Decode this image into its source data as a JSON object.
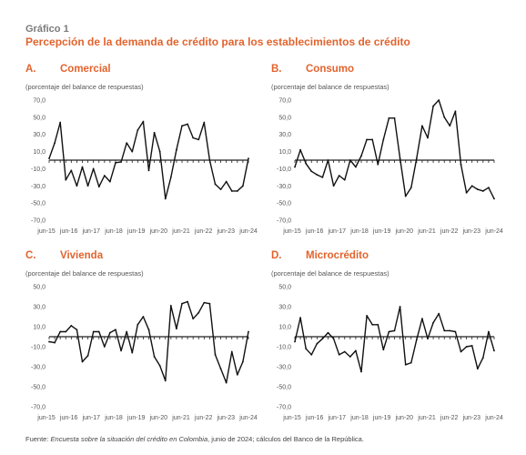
{
  "figure": {
    "number": "Gráfico 1",
    "title": "Percepción de la demanda de crédito para los establecimientos de crédito"
  },
  "source": {
    "lead": "Fuente: ",
    "survey": "Encuesta sobre la situación del crédito en Colombia",
    "rest": ", junio de 2024; cálculos del Banco de la República."
  },
  "colors": {
    "line": "#111111",
    "accent": "#e2632d",
    "zero_line": "#222222"
  },
  "chart_data": [
    {
      "type": "line",
      "panel_letter": "A.",
      "title": "Comercial",
      "subtitle": "(porcentaje del balance de respuestas)",
      "xlabels": [
        "jun-15",
        "jun-16",
        "jun-17",
        "jun-18",
        "jun-19",
        "jun-20",
        "jun-21",
        "jun-22",
        "jun-23",
        "jun-24"
      ],
      "yticks": [
        "70,0",
        "50,0",
        "30,0",
        "10,0",
        "-10,0",
        "-30,0",
        "-50,0",
        "-70,0"
      ],
      "ylim": [
        -70,
        70
      ],
      "values": [
        2,
        20,
        44,
        -23,
        -12,
        -30,
        -8,
        -30,
        -10,
        -31,
        -18,
        -25,
        -3,
        -2,
        20,
        10,
        35,
        45,
        -12,
        32,
        10,
        -45,
        -20,
        12,
        40,
        42,
        26,
        24,
        44,
        0,
        -28,
        -34,
        -25,
        -36,
        -36,
        -30,
        2
      ]
    },
    {
      "type": "line",
      "panel_letter": "B.",
      "title": "Consumo",
      "subtitle": "(porcentaje del balance de respuestas)",
      "xlabels": [
        "jun-15",
        "jun-16",
        "jun-17",
        "jun-18",
        "jun-19",
        "jun-20",
        "jun-21",
        "jun-22",
        "jun-23",
        "jun-24"
      ],
      "yticks": [
        "70,0",
        "50,0",
        "30,0",
        "10,0",
        "-10,0",
        "-30,0",
        "-50,0",
        "-70,0"
      ],
      "ylim": [
        -70,
        70
      ],
      "values": [
        -8,
        12,
        -4,
        -13,
        -17,
        -20,
        0,
        -30,
        -18,
        -23,
        0,
        -8,
        5,
        24,
        24,
        -5,
        24,
        49,
        49,
        2,
        -42,
        -32,
        2,
        40,
        26,
        63,
        70,
        50,
        40,
        57,
        -5,
        -38,
        -30,
        -34,
        -36,
        -32,
        -45
      ]
    },
    {
      "type": "line",
      "panel_letter": "C.",
      "title": "Vivienda",
      "subtitle": "(porcentaje del balance de respuestas)",
      "xlabels": [
        "jun-15",
        "jun-16",
        "jun-17",
        "jun-18",
        "jun-19",
        "jun-20",
        "jun-21",
        "jun-22",
        "jun-23",
        "jun-24"
      ],
      "yticks": [
        "50,0",
        "30,0",
        "10,0",
        "-10,0",
        "-30,0",
        "-50,0",
        "-70,0"
      ],
      "ylim": [
        -70,
        50
      ],
      "values": [
        -5,
        -6,
        5,
        5,
        11,
        7,
        -25,
        -19,
        5,
        5,
        -10,
        4,
        7,
        -14,
        5,
        -16,
        12,
        20,
        7,
        -20,
        -29,
        -44,
        31,
        8,
        33,
        35,
        18,
        24,
        34,
        33,
        -18,
        -32,
        -46,
        -15,
        -38,
        -25,
        5
      ]
    },
    {
      "type": "line",
      "panel_letter": "D.",
      "title": "Microcrédito",
      "subtitle": "(porcentaje del balance de respuestas)",
      "xlabels": [
        "jun-15",
        "jun-16",
        "jun-17",
        "jun-18",
        "jun-19",
        "jun-20",
        "jun-21",
        "jun-22",
        "jun-23",
        "jun-24"
      ],
      "yticks": [
        "50,0",
        "30,0",
        "10,0",
        "-10,0",
        "-30,0",
        "-50,0",
        "-70,0"
      ],
      "ylim": [
        -70,
        50
      ],
      "values": [
        -5,
        19,
        -12,
        -18,
        -7,
        -2,
        4,
        -2,
        -18,
        -15,
        -20,
        -14,
        -35,
        21,
        12,
        12,
        -13,
        5,
        6,
        30,
        -28,
        -26,
        -3,
        18,
        -2,
        14,
        23,
        6,
        6,
        5,
        -15,
        -10,
        -9,
        -32,
        -21,
        5,
        -14
      ]
    }
  ]
}
